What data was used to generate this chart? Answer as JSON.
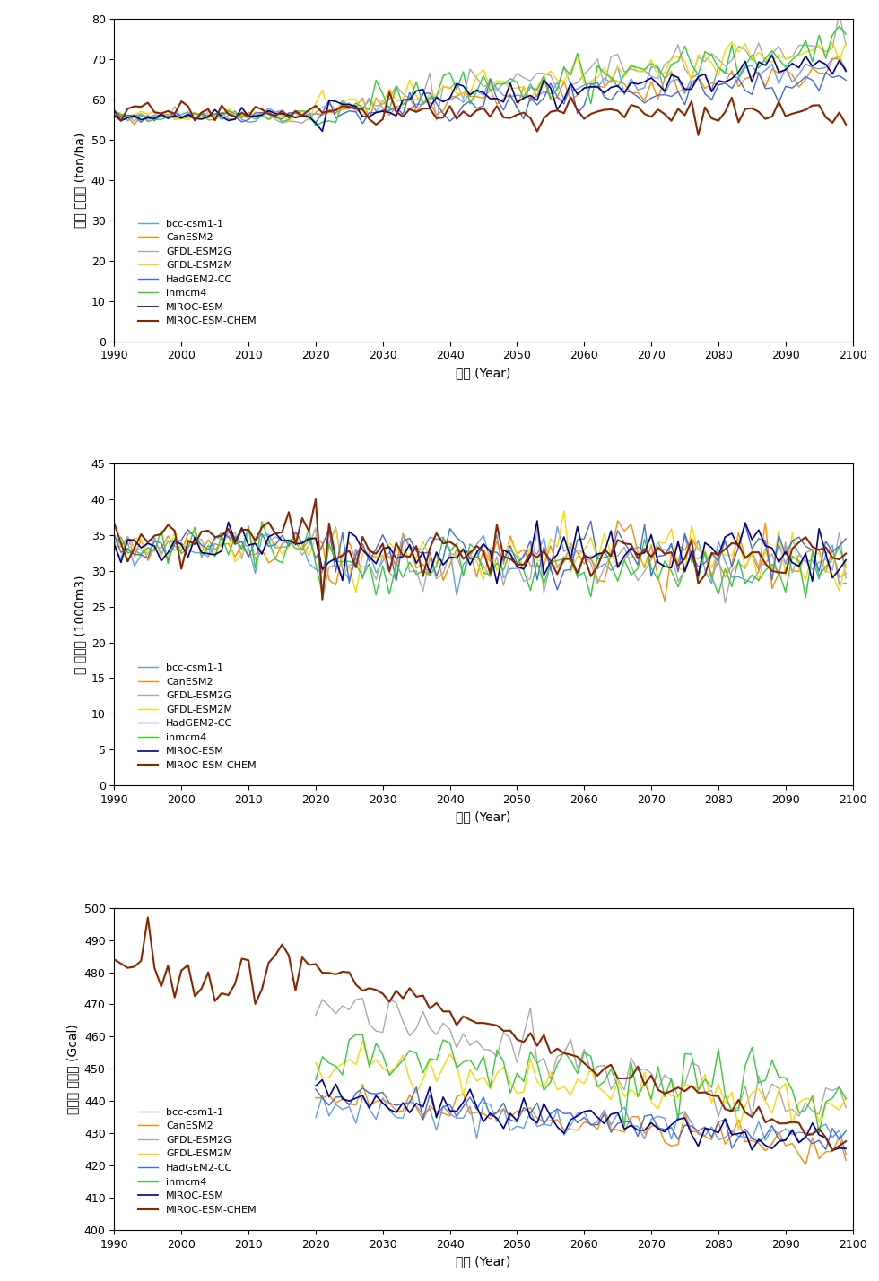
{
  "models": [
    "bcc-csm1-1",
    "CanESM2",
    "GFDL-ESM2G",
    "GFDL-ESM2M",
    "HadGEM2-CC",
    "inmcm4",
    "MIROC-ESM",
    "MIROC-ESM-CHEM"
  ],
  "colors": [
    "#6699FF",
    "#FF8C00",
    "#AAAAAA",
    "#FFD700",
    "#4169E1",
    "#32CD32",
    "#00008B",
    "#8B2500"
  ],
  "linewidths": [
    1.0,
    1.0,
    1.0,
    1.0,
    1.0,
    1.0,
    1.2,
    1.5
  ],
  "xlabel": "년도 (Year)",
  "ylabel1": "작물 생산량 (ton/ha)",
  "ylabel2": "물 사용량 (1000m3)",
  "ylabel3": "에너지 사용량 (Gcal)",
  "ylim1": [
    0,
    80
  ],
  "ylim2": [
    0,
    45
  ],
  "ylim3": [
    400,
    500
  ],
  "yticks1": [
    0,
    10,
    20,
    30,
    40,
    50,
    60,
    70,
    80
  ],
  "yticks2": [
    0,
    5,
    10,
    15,
    20,
    25,
    30,
    35,
    40,
    45
  ],
  "yticks3": [
    400,
    410,
    420,
    430,
    440,
    450,
    460,
    470,
    480,
    490,
    500
  ],
  "xlim": [
    1990,
    2100
  ],
  "xticks": [
    1990,
    2000,
    2010,
    2020,
    2030,
    2040,
    2050,
    2060,
    2070,
    2080,
    2090,
    2100
  ]
}
